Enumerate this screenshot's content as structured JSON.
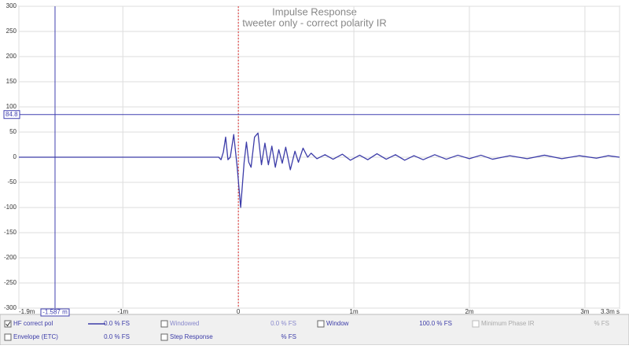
{
  "chart_data": {
    "type": "line",
    "title": "Impulse Response",
    "subtitle": "tweeter only - correct polarity IR",
    "xlim": [
      -1.9,
      3.3
    ],
    "xticks": [
      {
        "value": -1.9,
        "label": "-1.9m"
      },
      {
        "value": -1,
        "label": "-1m"
      },
      0,
      {
        "value": 1,
        "label": "1m"
      },
      {
        "value": 2,
        "label": "2m"
      },
      {
        "value": 3,
        "label": "3m"
      },
      {
        "value": 3.3,
        "label": "3.3m s"
      }
    ],
    "ylim": [
      -300,
      300
    ],
    "yticks": [
      -300,
      -250,
      -200,
      -150,
      -100,
      -50,
      0,
      50,
      100,
      150,
      200,
      250,
      300
    ],
    "grid": true,
    "reference_x": 0,
    "cursor_y": 84.8,
    "cursor_x": {
      "value": -1.587,
      "label": "-1.587 m"
    },
    "series": [
      {
        "name": "HF correct pol",
        "color": "#3c3ca8",
        "x": [
          -1.9,
          -0.25,
          -0.17,
          -0.15,
          -0.13,
          -0.11,
          -0.09,
          -0.07,
          -0.04,
          -0.01,
          0.02,
          0.05,
          0.07,
          0.09,
          0.11,
          0.14,
          0.17,
          0.2,
          0.23,
          0.26,
          0.29,
          0.32,
          0.35,
          0.38,
          0.41,
          0.45,
          0.49,
          0.52,
          0.56,
          0.6,
          0.63,
          0.68,
          0.75,
          0.82,
          0.9,
          0.97,
          1.05,
          1.12,
          1.2,
          1.28,
          1.36,
          1.44,
          1.52,
          1.6,
          1.7,
          1.8,
          1.9,
          2.0,
          2.1,
          2.2,
          2.35,
          2.5,
          2.65,
          2.8,
          2.95,
          3.1,
          3.2,
          3.3
        ],
        "values": [
          0,
          0,
          0,
          -5,
          10,
          40,
          -5,
          0,
          45,
          -20,
          -100,
          -10,
          30,
          -10,
          -20,
          40,
          48,
          -15,
          28,
          -15,
          22,
          -20,
          15,
          -12,
          20,
          -25,
          12,
          -10,
          18,
          0,
          8,
          -3,
          5,
          -4,
          6,
          -6,
          4,
          -5,
          7,
          -4,
          5,
          -6,
          3,
          -5,
          5,
          -4,
          4,
          -3,
          4,
          -4,
          3,
          -3,
          4,
          -3,
          3,
          -2,
          3,
          0
        ]
      }
    ]
  },
  "panel": {
    "rows": [
      [
        "HF correct pol",
        "0.0 % FS",
        "Windowed",
        "0.0 % FS",
        "Window",
        "100.0 % FS",
        "Minimum Phase IR",
        "% FS"
      ],
      [
        "Envelope (ETC)",
        "0.0 % FS",
        "Step Response",
        "% FS"
      ]
    ]
  }
}
